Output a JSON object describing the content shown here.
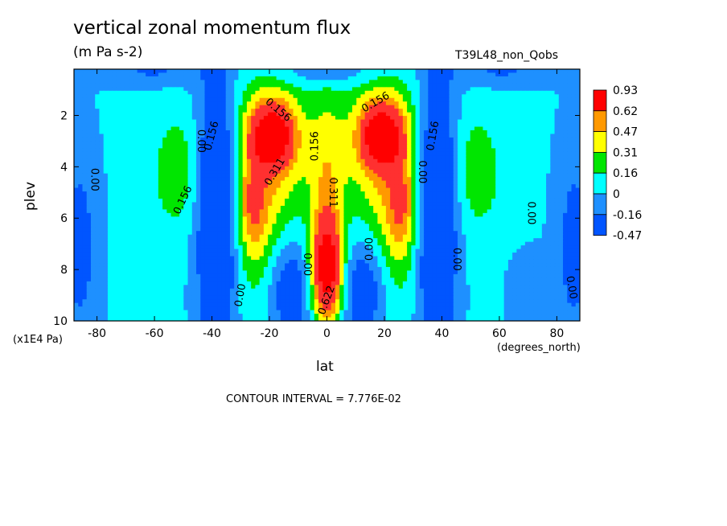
{
  "chart_data": {
    "type": "heatmap",
    "title": "vertical zonal momentum flux",
    "units": "(m Pa s-2)",
    "run_name": "T39L48_non_Qobs",
    "xlabel": "lat",
    "x_units": "(degrees_north)",
    "ylabel": "plev",
    "y_units": "(x1E4 Pa)",
    "xlim": [
      -88,
      88
    ],
    "ylim": [
      10,
      0.2
    ],
    "x_ticks": [
      -80,
      -60,
      -40,
      -20,
      0,
      20,
      40,
      60,
      80
    ],
    "y_ticks": [
      2,
      4,
      6,
      8,
      10
    ],
    "contour_interval_note": "CONTOUR INTERVAL = 7.776E-02",
    "colorbar": {
      "labels": [
        "0.93",
        "0.62",
        "0.47",
        "0.31",
        "0.16",
        "0",
        "-0.16",
        "-0.47"
      ],
      "colors": [
        "#ff0000",
        "#ff9900",
        "#ffff00",
        "#00e600",
        "#00ffff",
        "#1e90ff",
        "#0055ff"
      ]
    },
    "contour_labels": [
      {
        "text": "0.156",
        "lat": -17,
        "plev": 1.8,
        "angle": 40
      },
      {
        "text": "0.156",
        "lat": 17,
        "plev": 1.5,
        "angle": -30
      },
      {
        "text": "0.156",
        "lat": -4,
        "plev": 3.2,
        "angle": -90
      },
      {
        "text": "0.156",
        "lat": -40,
        "plev": 2.8,
        "angle": -75
      },
      {
        "text": "0.156",
        "lat": 37,
        "plev": 2.8,
        "angle": -80
      },
      {
        "text": "0.156",
        "lat": -50,
        "plev": 5.3,
        "angle": -65
      },
      {
        "text": "0.311",
        "lat": -18,
        "plev": 4.2,
        "angle": -60
      },
      {
        "text": "0.311",
        "lat": 2,
        "plev": 5.0,
        "angle": 90
      },
      {
        "text": "0.622",
        "lat": 0,
        "plev": 9.2,
        "angle": -70
      },
      {
        "text": "0.00",
        "lat": -81,
        "plev": 4.5,
        "angle": 90
      },
      {
        "text": "0.00",
        "lat": -44,
        "plev": 3.0,
        "angle": 90
      },
      {
        "text": "0.00",
        "lat": -7,
        "plev": 7.8,
        "angle": 90
      },
      {
        "text": "0.00",
        "lat": 15,
        "plev": 7.2,
        "angle": -90
      },
      {
        "text": "0.00",
        "lat": 33,
        "plev": 4.2,
        "angle": 90
      },
      {
        "text": "0.00",
        "lat": 45,
        "plev": 7.6,
        "angle": 90
      },
      {
        "text": "0.00",
        "lat": -30,
        "plev": 9.0,
        "angle": -80
      },
      {
        "text": "0.00",
        "lat": 71,
        "plev": 5.8,
        "angle": 90
      },
      {
        "text": "0.00",
        "lat": 85,
        "plev": 8.7,
        "angle": 80
      }
    ]
  }
}
